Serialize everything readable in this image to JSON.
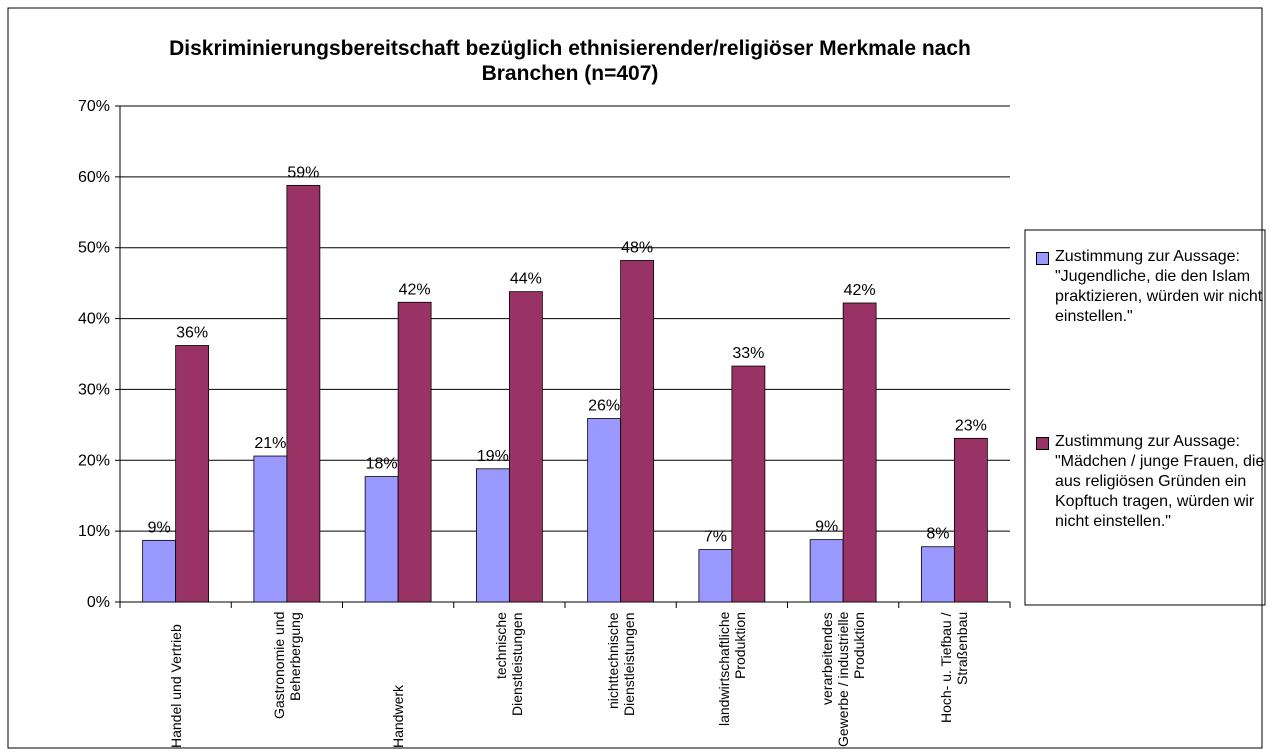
{
  "chart_data": {
    "type": "bar",
    "title": "Diskriminierungsbereitschaft bezüglich ethnisierender/religiöser Merkmale nach Branchen (n=407)",
    "categories": [
      "Handel und Vertrieb",
      "Gastronomie und Beherbergung",
      "Handwerk",
      "technische Dienstleistungen",
      "nichttechnische Dienstleistungen",
      "landwirtschaftliche Produktion",
      "verarbeitendes Gewerbe / industrielle Produktion",
      "Hoch- u. Tiefbau / Straßenbau"
    ],
    "series": [
      {
        "name": "Zustimmung zur Aussage: \"Jugendliche, die den Islam praktizieren, würden wir nicht einstellen.\"",
        "color": "#9999ff",
        "values": [
          8.7,
          20.6,
          17.7,
          18.8,
          25.9,
          7.4,
          8.8,
          7.8
        ],
        "value_labels": [
          "9%",
          "21%",
          "18%",
          "19%",
          "26%",
          "7%",
          "9%",
          "8%"
        ]
      },
      {
        "name": "Zustimmung zur Aussage: \"Mädchen / junge Frauen, die aus religiösen Gründen ein Kopftuch tragen, würden wir nicht einstellen.\"",
        "color": "#993366",
        "values": [
          36.2,
          58.8,
          42.3,
          43.8,
          48.2,
          33.3,
          42.2,
          23.1
        ],
        "value_labels": [
          "36%",
          "59%",
          "42%",
          "44%",
          "48%",
          "33%",
          "42%",
          "23%"
        ]
      }
    ],
    "ylim": [
      0,
      70
    ],
    "yticks": [
      {
        "value": 0,
        "label": "0%"
      },
      {
        "value": 10,
        "label": "10%"
      },
      {
        "value": 20,
        "label": "20%"
      },
      {
        "value": 30,
        "label": "30%"
      },
      {
        "value": 40,
        "label": "40%"
      },
      {
        "value": 50,
        "label": "50%"
      },
      {
        "value": 60,
        "label": "60%"
      },
      {
        "value": 70,
        "label": "70%"
      }
    ],
    "grid": true,
    "legend": "right"
  }
}
